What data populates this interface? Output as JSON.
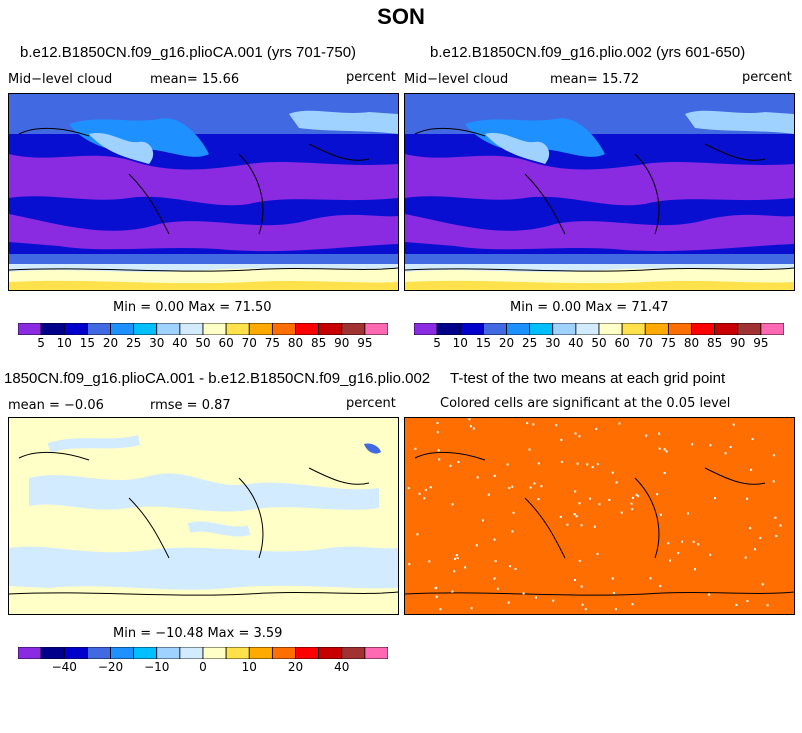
{
  "title": "SON",
  "panels": [
    {
      "id": "top-left",
      "title": "b.e12.B1850CN.f09_g16.plioCA.001 (yrs 701-750)",
      "left_label": "Mid−level cloud",
      "mean_label": "mean=  15.66",
      "right_label": "percent",
      "minmax": "Min =   0.00 Max =  71.50"
    },
    {
      "id": "top-right",
      "title": "b.e12.B1850CN.f09_g16.plio.002 (yrs 601-650)",
      "left_label": "Mid−level cloud",
      "mean_label": "mean=  15.72",
      "right_label": "percent",
      "minmax": "Min =   0.00 Max =  71.47"
    },
    {
      "id": "bottom-left",
      "title": "1850CN.f09_g16.plioCA.001 - b.e12.B1850CN.f09_g16.plio.002",
      "left_label": "mean =  −0.06",
      "mean_label": "rmse =   0.87",
      "right_label": "percent",
      "minmax": "Min = −10.48 Max =   3.59"
    },
    {
      "id": "bottom-right",
      "title": "T-test of the two means at each grid point",
      "left_label": "Colored cells are significant at the 0.05 level"
    }
  ],
  "chart_data": [
    {
      "type": "heatmap",
      "title": "b.e12.B1850CN.f09_g16.plioCA.001 (yrs 701-750)",
      "variable": "Mid−level cloud",
      "units": "percent",
      "mean": 15.66,
      "min": 0.0,
      "max": 71.5,
      "colorbar_levels": [
        "5",
        "10",
        "15",
        "20",
        "25",
        "30",
        "40",
        "50",
        "60",
        "70",
        "75",
        "80",
        "85",
        "90",
        "95"
      ]
    },
    {
      "type": "heatmap",
      "title": "b.e12.B1850CN.f09_g16.plio.002 (yrs 601-650)",
      "variable": "Mid−level cloud",
      "units": "percent",
      "mean": 15.72,
      "min": 0.0,
      "max": 71.47,
      "colorbar_levels": [
        "5",
        "10",
        "15",
        "20",
        "25",
        "30",
        "40",
        "50",
        "60",
        "70",
        "75",
        "80",
        "85",
        "90",
        "95"
      ]
    },
    {
      "type": "heatmap",
      "title": "1850CN.f09_g16.plioCA.001 - b.e12.B1850CN.f09_g16.plio.002",
      "units": "percent",
      "mean": -0.06,
      "rmse": 0.87,
      "min": -10.48,
      "max": 3.59,
      "colorbar_labels": [
        "−40",
        "−20",
        "−10",
        "0",
        "10",
        "20",
        "40"
      ]
    },
    {
      "type": "heatmap",
      "title": "T-test of the two means at each grid point",
      "subtitle": "Colored cells are significant at the 0.05 level"
    }
  ],
  "colors": {
    "cloud_scale": [
      "#8a2be2",
      "#00008b",
      "#0000cd",
      "#4169e1",
      "#1e90ff",
      "#00bfff",
      "#a0d2ff",
      "#d2ebff",
      "#ffffc8",
      "#ffe14b",
      "#ffaa00",
      "#ff6e00",
      "#ff0000",
      "#c80000",
      "#a03232",
      "#ff69b4"
    ],
    "diff_scale": [
      "#8a2be2",
      "#00008b",
      "#0000cd",
      "#4169e1",
      "#1e90ff",
      "#00bfff",
      "#a0d2ff",
      "#d2ebff",
      "#ffffc8",
      "#ffe14b",
      "#ffaa00",
      "#ff6e00",
      "#ff0000",
      "#c80000",
      "#a03232",
      "#ff69b4"
    ],
    "ttest": "#ff6e00"
  }
}
